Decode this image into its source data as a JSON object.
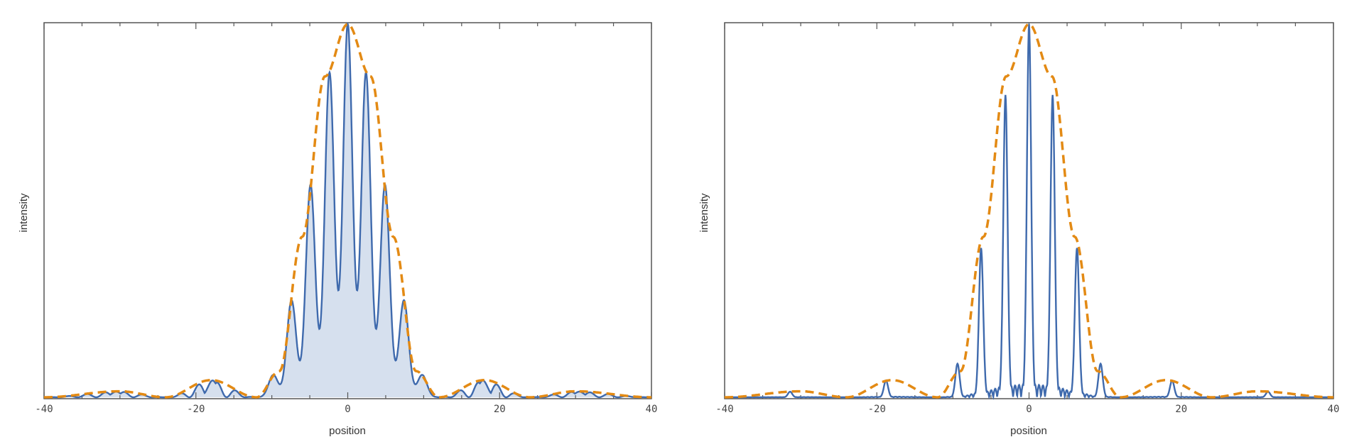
{
  "chart_data": [
    {
      "type": "area",
      "xlabel": "position",
      "ylabel": "intensity",
      "xlim": [
        -40,
        40
      ],
      "ylim": [
        0,
        1
      ],
      "x_ticks": [
        -40,
        -20,
        0,
        20,
        40
      ],
      "x_tick_labels": [
        "-40",
        "-20",
        "0",
        "20",
        "40"
      ],
      "show_y_ticks": false,
      "filled": true,
      "slits": 2,
      "series": [
        {
          "role": "intensity",
          "style": "solid",
          "color": "#3f6aad",
          "peaks": [
            {
              "x": 0.0,
              "y": 1.0
            },
            {
              "x": -2.4,
              "y": 0.87
            },
            {
              "x": 2.4,
              "y": 0.87
            },
            {
              "x": -4.9,
              "y": 0.57
            },
            {
              "x": 4.9,
              "y": 0.57
            },
            {
              "x": -7.4,
              "y": 0.26
            },
            {
              "x": 7.4,
              "y": 0.26
            },
            {
              "x": -9.8,
              "y": 0.06
            },
            {
              "x": 9.8,
              "y": 0.06
            },
            {
              "x": -17.8,
              "y": 0.045
            },
            {
              "x": 17.8,
              "y": 0.045
            },
            {
              "x": -30.5,
              "y": 0.015
            },
            {
              "x": 30.5,
              "y": 0.015
            }
          ]
        },
        {
          "role": "envelope",
          "style": "dashed",
          "color": "#e38a14",
          "points": [
            [
              -40,
              0
            ],
            [
              -30,
              0.016
            ],
            [
              -24,
              0
            ],
            [
              -18,
              0.046
            ],
            [
              -12,
              0
            ],
            [
              -9,
              0.07
            ],
            [
              -6,
              0.43
            ],
            [
              -3,
              0.86
            ],
            [
              0,
              1
            ],
            [
              3,
              0.86
            ],
            [
              6,
              0.43
            ],
            [
              9,
              0.07
            ],
            [
              12,
              0
            ],
            [
              18,
              0.046
            ],
            [
              24,
              0
            ],
            [
              30,
              0.016
            ],
            [
              40,
              0
            ]
          ]
        }
      ]
    },
    {
      "type": "line",
      "xlabel": "position",
      "ylabel": "intensity",
      "xlim": [
        -40,
        40
      ],
      "ylim": [
        0,
        1
      ],
      "x_ticks": [
        -40,
        -20,
        0,
        20,
        40
      ],
      "x_tick_labels": [
        "-40",
        "-20",
        "0",
        "20",
        "40"
      ],
      "show_y_ticks": false,
      "filled": false,
      "slits": 6,
      "series": [
        {
          "role": "intensity",
          "style": "solid",
          "color": "#3f6aad",
          "peaks": [
            {
              "x": 0.0,
              "y": 1.0
            },
            {
              "x": -3.1,
              "y": 0.81
            },
            {
              "x": 3.1,
              "y": 0.81
            },
            {
              "x": -6.3,
              "y": 0.4
            },
            {
              "x": 6.3,
              "y": 0.4
            },
            {
              "x": -9.4,
              "y": 0.09
            },
            {
              "x": 9.4,
              "y": 0.09
            },
            {
              "x": -18.8,
              "y": 0.045
            },
            {
              "x": 18.8,
              "y": 0.045
            },
            {
              "x": -31.4,
              "y": 0.015
            },
            {
              "x": 31.4,
              "y": 0.015
            }
          ]
        },
        {
          "role": "envelope",
          "style": "dashed",
          "color": "#e38a14",
          "points": [
            [
              -40,
              0
            ],
            [
              -30,
              0.016
            ],
            [
              -24,
              0
            ],
            [
              -18,
              0.046
            ],
            [
              -12,
              0
            ],
            [
              -9,
              0.07
            ],
            [
              -6,
              0.43
            ],
            [
              -3,
              0.86
            ],
            [
              0,
              1
            ],
            [
              3,
              0.86
            ],
            [
              6,
              0.43
            ],
            [
              9,
              0.07
            ],
            [
              12,
              0
            ],
            [
              18,
              0.046
            ],
            [
              24,
              0
            ],
            [
              30,
              0.016
            ],
            [
              40,
              0
            ]
          ]
        }
      ]
    }
  ]
}
